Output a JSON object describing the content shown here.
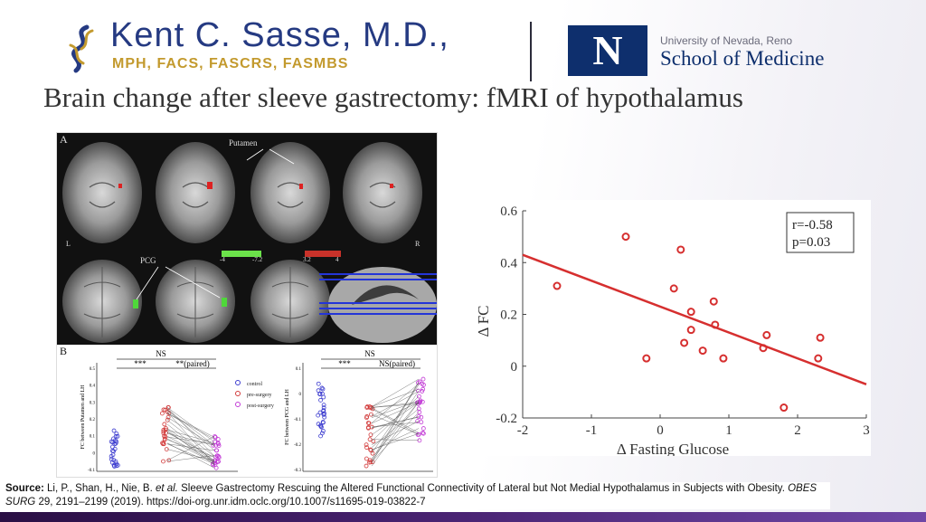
{
  "header": {
    "doctor_name": "Kent C. Sasse, M.D.,",
    "credentials": "MPH, FACS, FASCRS, FASMBS",
    "unr_logo_letter": "N",
    "unr_line1": "University of Nevada, Reno",
    "unr_line2": "School of Medicine"
  },
  "title": "Brain change after sleeve gastrectomy: fMRI of hypothalamus",
  "figure": {
    "label_a": "A",
    "label_b": "B",
    "putamen": "Putamen",
    "pcg": "PCG",
    "left_marker": "L",
    "right_marker": "R",
    "green_scale": [
      "-4",
      "-7.2"
    ],
    "red_scale": [
      "3.2",
      "4"
    ],
    "left_plot": {
      "ns": "NS",
      "sig": "***",
      "paired": "**(paired)",
      "ylabel": "FC between Putamen and LH",
      "ticks": [
        "0.5",
        "0.4",
        "0.3",
        "0.2",
        "0.1",
        "0",
        "-0.1"
      ]
    },
    "right_plot": {
      "ns": "NS",
      "sig": "***",
      "paired": "NS(paired)",
      "ylabel": "FC between PCG and LH",
      "ticks": [
        "0.1",
        "0",
        "-0.1",
        "-0.2",
        "-0.3"
      ]
    },
    "legend": [
      "control",
      "pre-surgery",
      "post-surgery"
    ],
    "colors": {
      "control": "#3c3ccf",
      "pre": "#d23a3a",
      "post": "#c23ad6"
    }
  },
  "chart_data": {
    "type": "scatter",
    "xlabel": "Δ Fasting Glucose",
    "ylabel": "Δ FC",
    "xlim": [
      -2,
      3
    ],
    "ylim": [
      -0.2,
      0.6
    ],
    "xticks": [
      "-2",
      "-1",
      "0",
      "1",
      "2",
      "3"
    ],
    "yticks": [
      "-0.2",
      "0",
      "0.2",
      "0.4",
      "0.6"
    ],
    "annotation": [
      "r=-0.58",
      "p=0.03"
    ],
    "points": [
      {
        "x": -1.5,
        "y": 0.31
      },
      {
        "x": -0.5,
        "y": 0.5
      },
      {
        "x": 0.3,
        "y": 0.45
      },
      {
        "x": 0.2,
        "y": 0.3
      },
      {
        "x": 0.78,
        "y": 0.25
      },
      {
        "x": 0.45,
        "y": 0.21
      },
      {
        "x": 0.8,
        "y": 0.16
      },
      {
        "x": 0.45,
        "y": 0.14
      },
      {
        "x": 1.55,
        "y": 0.12
      },
      {
        "x": 2.33,
        "y": 0.11
      },
      {
        "x": 0.35,
        "y": 0.09
      },
      {
        "x": 1.5,
        "y": 0.07
      },
      {
        "x": 0.62,
        "y": 0.06
      },
      {
        "x": -0.2,
        "y": 0.03
      },
      {
        "x": 0.92,
        "y": 0.03
      },
      {
        "x": 2.3,
        "y": 0.03
      },
      {
        "x": 1.8,
        "y": -0.16
      }
    ],
    "fit": {
      "x": [
        -2,
        3
      ],
      "y": [
        0.43,
        -0.07
      ]
    },
    "point_color": "#d62f2f",
    "line_color": "#d62f2f"
  },
  "source": {
    "label": "Source:",
    "authors": "Li, P., Shan, H., Nie, B.",
    "etal": "et al.",
    "article": "Sleeve Gastrectomy Rescuing the Altered Functional Connectivity of Lateral but Not Medial Hypothalamus in Subjects with Obesity.",
    "journal": "OBES SURG",
    "citation": "29, 2191–2199 (2019). https://doi-org.unr.idm.oclc.org/10.1007/s11695-019-03822-7"
  }
}
